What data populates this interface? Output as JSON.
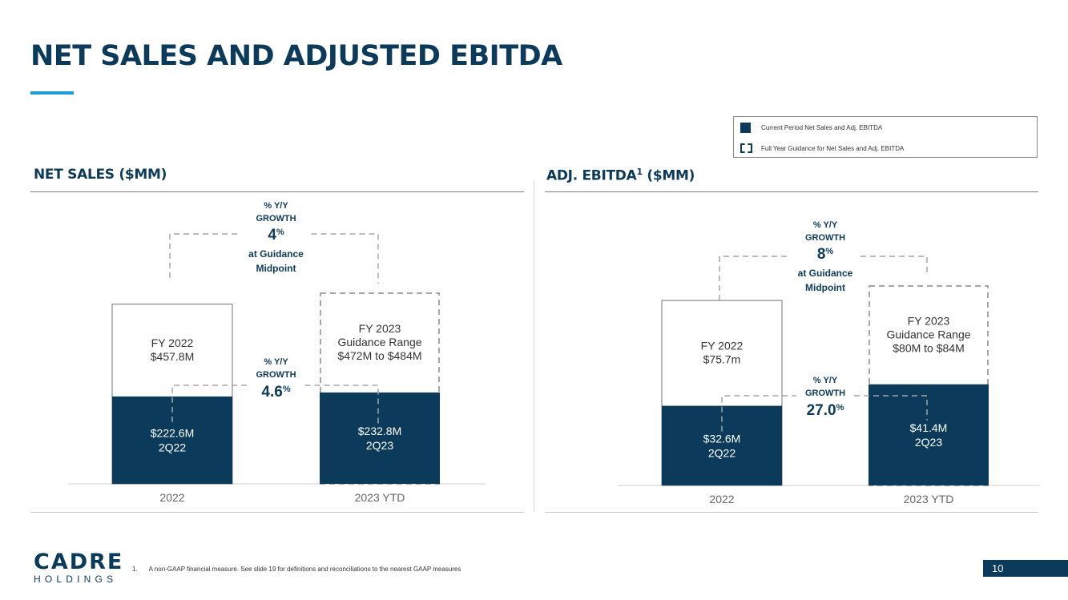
{
  "title": "NET SALES AND ADJUSTED EBITDA",
  "legend": {
    "current": "Current Period Net Sales and Adj. EBITDA",
    "guidance": "Full Year Guidance for Net Sales and Adj. EBITDA"
  },
  "sections": {
    "net_sales_title": "NET SALES ($MM)",
    "ebitda_title_main": "ADJ. EBITDA",
    "ebitda_title_sup": "1",
    "ebitda_title_unit": " ($MM)"
  },
  "colors": {
    "navy": "#0b3a5b",
    "accent": "#1f9bd7",
    "outline": "#8a8a8a",
    "dash": "#a6a6a6"
  },
  "chart_data": [
    {
      "type": "bar",
      "categories": [
        "2022",
        "2023 YTD"
      ],
      "series": [
        {
          "name": "Current Period Net Sales and Adj. EBITDA",
          "values": [
            222.6,
            232.8
          ]
        },
        {
          "name": "Full Year Guidance for Net Sales and Adj. EBITDA",
          "values": [
            457.8,
            478
          ]
        }
      ],
      "bar_labels": {
        "current": [
          [
            "$222.6M",
            "2Q22"
          ],
          [
            "$232.8M",
            "2Q23"
          ]
        ],
        "full_year": [
          [
            "FY 2022",
            "$457.8M"
          ],
          [
            "FY 2023",
            "Guidance Range",
            "$472M to $484M"
          ]
        ]
      },
      "growth_top": {
        "lines": [
          "% Y/Y",
          "GROWTH"
        ],
        "value": "4",
        "suffix": "%",
        "note": [
          "at Guidance",
          "Midpoint"
        ]
      },
      "growth_mid": {
        "lines": [
          "% Y/Y",
          "GROWTH"
        ],
        "value": "4.6",
        "suffix": "%"
      }
    },
    {
      "type": "bar",
      "categories": [
        "2022",
        "2023 YTD"
      ],
      "series": [
        {
          "name": "Current Period Net Sales and Adj. EBITDA",
          "values": [
            32.6,
            41.4
          ]
        },
        {
          "name": "Full Year Guidance for Net Sales and Adj. EBITDA",
          "values": [
            75.7,
            82
          ]
        }
      ],
      "bar_labels": {
        "current": [
          [
            "$32.6M",
            "2Q22"
          ],
          [
            "$41.4M",
            "2Q23"
          ]
        ],
        "full_year": [
          [
            "FY 2022",
            "$75.7m"
          ],
          [
            "FY 2023",
            "Guidance Range",
            "$80M to $84M"
          ]
        ]
      },
      "growth_top": {
        "lines": [
          "% Y/Y",
          "GROWTH"
        ],
        "value": "8",
        "suffix": "%",
        "note": [
          "at Guidance",
          "Midpoint"
        ]
      },
      "growth_mid": {
        "lines": [
          "% Y/Y",
          "GROWTH"
        ],
        "value": "27.0",
        "suffix": "%"
      }
    }
  ],
  "footer": {
    "logo_main": "CADRE",
    "logo_sub": "HOLDINGS",
    "footnote_num": "1.",
    "footnote_text": "A non-GAAP financial measure. See slide 19 for definitions and reconciliations to the nearest GAAP measures",
    "page_number": "10"
  }
}
